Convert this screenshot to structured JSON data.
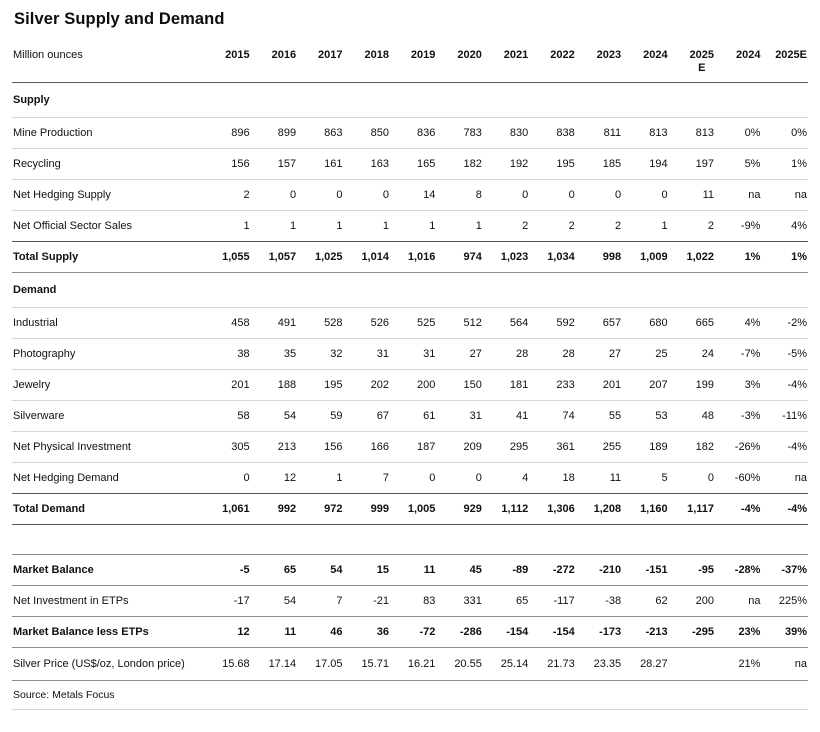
{
  "title": "Silver Supply and Demand",
  "table": {
    "unit_label": "Million ounces",
    "columns": [
      "2015",
      "2016",
      "2017",
      "2018",
      "2019",
      "2020",
      "2021",
      "2022",
      "2023",
      "2024",
      "2025\nE",
      "2024",
      "2025E"
    ],
    "rows": [
      {
        "type": "section",
        "rule": "light",
        "label": "Supply"
      },
      {
        "type": "normal",
        "rule": "light",
        "label": "Mine Production",
        "values": [
          "896",
          "899",
          "863",
          "850",
          "836",
          "783",
          "830",
          "838",
          "811",
          "813",
          "813",
          "0%",
          "0%"
        ]
      },
      {
        "type": "normal",
        "rule": "light",
        "label": "Recycling",
        "values": [
          "156",
          "157",
          "161",
          "163",
          "165",
          "182",
          "192",
          "195",
          "185",
          "194",
          "197",
          "5%",
          "1%"
        ]
      },
      {
        "type": "normal",
        "rule": "light",
        "label": "Net Hedging Supply",
        "values": [
          "2",
          "0",
          "0",
          "0",
          "14",
          "8",
          "0",
          "0",
          "0",
          "0",
          "11",
          "na",
          "na"
        ]
      },
      {
        "type": "normal",
        "rule": "dark",
        "label": "Net Official Sector Sales",
        "values": [
          "1",
          "1",
          "1",
          "1",
          "1",
          "1",
          "2",
          "2",
          "2",
          "1",
          "2",
          "-9%",
          "4%"
        ]
      },
      {
        "type": "total",
        "rule": "mid",
        "label": "Total Supply",
        "values": [
          "1,055",
          "1,057",
          "1,025",
          "1,014",
          "1,016",
          "974",
          "1,023",
          "1,034",
          "998",
          "1,009",
          "1,022",
          "1%",
          "1%"
        ]
      },
      {
        "type": "section",
        "rule": "light",
        "label": "Demand"
      },
      {
        "type": "normal",
        "rule": "light",
        "label": "Industrial",
        "values": [
          "458",
          "491",
          "528",
          "526",
          "525",
          "512",
          "564",
          "592",
          "657",
          "680",
          "665",
          "4%",
          "-2%"
        ]
      },
      {
        "type": "normal",
        "rule": "light",
        "label": "Photography",
        "values": [
          "38",
          "35",
          "32",
          "31",
          "31",
          "27",
          "28",
          "28",
          "27",
          "25",
          "24",
          "-7%",
          "-5%"
        ]
      },
      {
        "type": "normal",
        "rule": "light",
        "label": "Jewelry",
        "values": [
          "201",
          "188",
          "195",
          "202",
          "200",
          "150",
          "181",
          "233",
          "201",
          "207",
          "199",
          "3%",
          "-4%"
        ]
      },
      {
        "type": "normal",
        "rule": "light",
        "label": "Silverware",
        "values": [
          "58",
          "54",
          "59",
          "67",
          "61",
          "31",
          "41",
          "74",
          "55",
          "53",
          "48",
          "-3%",
          "-11%"
        ]
      },
      {
        "type": "normal",
        "rule": "light",
        "label": "Net Physical Investment",
        "values": [
          "305",
          "213",
          "156",
          "166",
          "187",
          "209",
          "295",
          "361",
          "255",
          "189",
          "182",
          "-26%",
          "-4%"
        ]
      },
      {
        "type": "normal",
        "rule": "dark",
        "label": "Net Hedging Demand",
        "values": [
          "0",
          "12",
          "1",
          "7",
          "0",
          "0",
          "4",
          "18",
          "11",
          "5",
          "0",
          "-60%",
          "na"
        ]
      },
      {
        "type": "total",
        "rule": "dark",
        "label": "Total Demand",
        "values": [
          "1,061",
          "992",
          "972",
          "999",
          "1,005",
          "929",
          "1,112",
          "1,306",
          "1,208",
          "1,160",
          "1,117",
          "-4%",
          "-4%"
        ]
      },
      {
        "type": "spacer",
        "rule": "mid",
        "label": ""
      },
      {
        "type": "bold",
        "rule": "mid",
        "label": "Market Balance",
        "values": [
          "-5",
          "65",
          "54",
          "15",
          "11",
          "45",
          "-89",
          "-272",
          "-210",
          "-151",
          "-95",
          "-28%",
          "-37%"
        ]
      },
      {
        "type": "normal",
        "rule": "mid",
        "label": "Net Investment in ETPs",
        "values": [
          "-17",
          "54",
          "7",
          "-21",
          "83",
          "331",
          "65",
          "-117",
          "-38",
          "62",
          "200",
          "na",
          "225%"
        ]
      },
      {
        "type": "bold",
        "rule": "mid",
        "label": "Market Balance less ETPs",
        "values": [
          "12",
          "11",
          "46",
          "36",
          "-72",
          "-286",
          "-154",
          "-154",
          "-173",
          "-213",
          "-295",
          "23%",
          "39%"
        ]
      },
      {
        "type": "price",
        "rule": "mid",
        "label": "Silver Price (US$/oz, London price)",
        "values": [
          "15.68",
          "17.14",
          "17.05",
          "15.71",
          "16.21",
          "20.55",
          "25.14",
          "21.73",
          "23.35",
          "28.27",
          "",
          "21%",
          "na"
        ]
      },
      {
        "type": "source",
        "rule": "light",
        "label": "Source: Metals Focus"
      }
    ]
  }
}
